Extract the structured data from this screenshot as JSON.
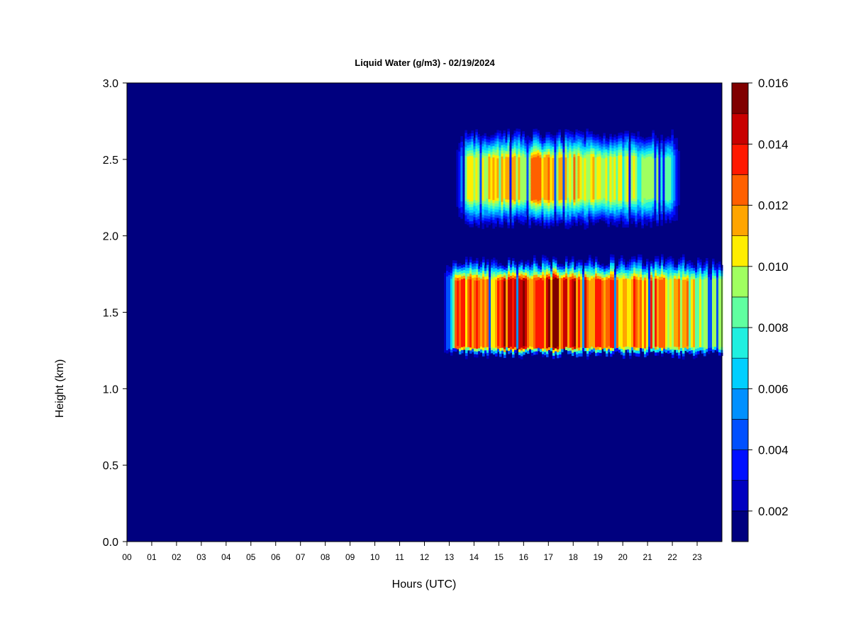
{
  "chart_data": {
    "type": "heatmap",
    "title": "Liquid Water (g/m3) - 02/19/2024",
    "xlabel": "Hours (UTC)",
    "ylabel": "Height (km)",
    "x_ticks": [
      "00",
      "01",
      "02",
      "03",
      "04",
      "05",
      "06",
      "07",
      "08",
      "09",
      "10",
      "11",
      "12",
      "13",
      "14",
      "15",
      "16",
      "17",
      "18",
      "19",
      "20",
      "21",
      "22",
      "23"
    ],
    "xlim": [
      0,
      24
    ],
    "y_ticks": [
      "0.0",
      "0.5",
      "1.0",
      "1.5",
      "2.0",
      "2.5",
      "3.0"
    ],
    "ylim": [
      0,
      3.0
    ],
    "colorbar": {
      "levels": [
        0.001,
        0.002,
        0.003,
        0.004,
        0.005,
        0.006,
        0.007,
        0.008,
        0.009,
        0.01,
        0.011,
        0.012,
        0.013,
        0.014,
        0.015,
        0.016
      ],
      "tick_labels": [
        "0.002",
        "0.004",
        "0.006",
        "0.008",
        "0.010",
        "0.012",
        "0.014",
        "0.016"
      ],
      "colors": [
        "#00007f",
        "#0000c0",
        "#0010ff",
        "#0050ff",
        "#0090ff",
        "#00cfff",
        "#20f0e0",
        "#60ffa0",
        "#a0ff60",
        "#ffee00",
        "#ffa500",
        "#ff6000",
        "#ff1800",
        "#c80000",
        "#800000"
      ]
    },
    "background_value": 0.001,
    "regions": [
      {
        "name": "upper cloud layer",
        "x_start": 13.2,
        "x_end": 22.3,
        "y_bottom": 2.05,
        "y_top": 2.72,
        "core_bottom": 2.25,
        "core_top": 2.52,
        "peak": 0.0115
      },
      {
        "name": "lower cloud layer",
        "x_start": 12.7,
        "x_end": 24.0,
        "y_bottom": 1.22,
        "y_top": 1.88,
        "core_bottom": 1.28,
        "core_top": 1.72,
        "peak": 0.0145
      }
    ]
  }
}
